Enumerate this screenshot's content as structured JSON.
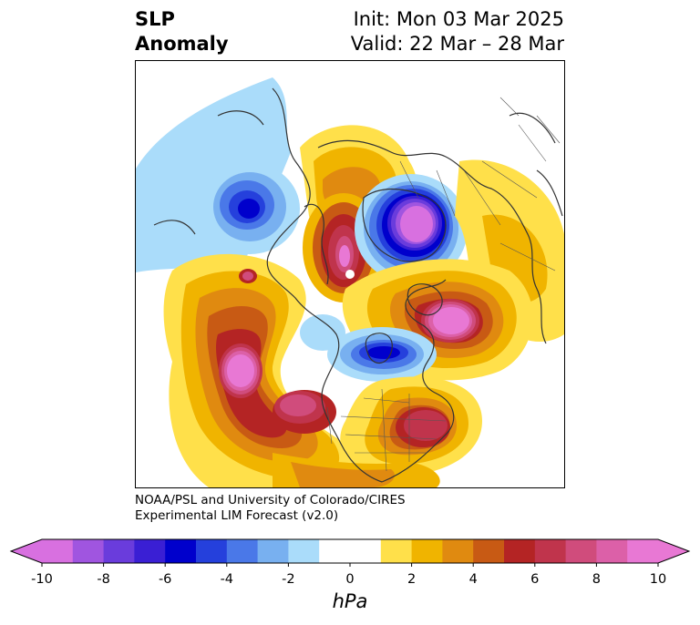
{
  "header": {
    "title_line1": "SLP",
    "title_line2": "Anomaly",
    "init": "Init: Mon 03 Mar 2025",
    "valid": "Valid: 22 Mar – 28 Mar"
  },
  "credit": {
    "line1": "NOAA/PSL and University of Colorado/CIRES",
    "line2": "Experimental LIM Forecast (v2.0)"
  },
  "colorbar": {
    "unit": "hPa",
    "min": -10,
    "max": 10,
    "tick_labels": [
      "-10",
      "-8",
      "-6",
      "-4",
      "-2",
      "0",
      "2",
      "4",
      "6",
      "8",
      "10"
    ],
    "tick_values": [
      -10,
      -8,
      -6,
      -4,
      -2,
      0,
      2,
      4,
      6,
      8,
      10
    ],
    "extend": "both",
    "bins": [
      {
        "from": -10,
        "to": -9,
        "color": "#d870e0"
      },
      {
        "from": -9,
        "to": -8,
        "color": "#a055e0"
      },
      {
        "from": -8,
        "to": -7,
        "color": "#6a3cdc"
      },
      {
        "from": -7,
        "to": -6,
        "color": "#3a1fd4"
      },
      {
        "from": -6,
        "to": -5,
        "color": "#0000cc"
      },
      {
        "from": -5,
        "to": -4,
        "color": "#2540dc"
      },
      {
        "from": -4,
        "to": -3,
        "color": "#4a78e8"
      },
      {
        "from": -3,
        "to": -2,
        "color": "#78b0f0"
      },
      {
        "from": -2,
        "to": -1,
        "color": "#aadcfa"
      },
      {
        "from": -1,
        "to": 0,
        "color": "#ffffff"
      },
      {
        "from": 0,
        "to": 1,
        "color": "#ffffff"
      },
      {
        "from": 1,
        "to": 2,
        "color": "#ffe04a"
      },
      {
        "from": 2,
        "to": 3,
        "color": "#f0b400"
      },
      {
        "from": 3,
        "to": 4,
        "color": "#e08a10"
      },
      {
        "from": 4,
        "to": 5,
        "color": "#c85a14"
      },
      {
        "from": 5,
        "to": 6,
        "color": "#b42424"
      },
      {
        "from": 6,
        "to": 7,
        "color": "#c0344c"
      },
      {
        "from": 7,
        "to": 8,
        "color": "#d04c7c"
      },
      {
        "from": 8,
        "to": 9,
        "color": "#dc60a8"
      },
      {
        "from": 9,
        "to": 10,
        "color": "#e878d4"
      }
    ],
    "under_color": "#d870e0",
    "over_color": "#e878d4"
  },
  "map": {
    "projection": "north-polar-stereographic",
    "features": [
      {
        "name": "negative-anomaly-west-siberia",
        "level": -10
      },
      {
        "name": "negative-anomaly-hudson-bay",
        "level": -6
      },
      {
        "name": "negative-anomaly-europe",
        "level": -6
      },
      {
        "name": "negative-anomaly-north-pacific",
        "level": -2
      },
      {
        "name": "positive-anomaly-gulf-of-alaska",
        "level": 10
      },
      {
        "name": "positive-anomaly-north-atlantic-east",
        "level": 10
      },
      {
        "name": "positive-anomaly-western-north-america",
        "level": 8
      },
      {
        "name": "positive-anomaly-east-us-coast",
        "level": 8
      },
      {
        "name": "positive-anomaly-arctic-ocean",
        "level": 10
      }
    ]
  }
}
